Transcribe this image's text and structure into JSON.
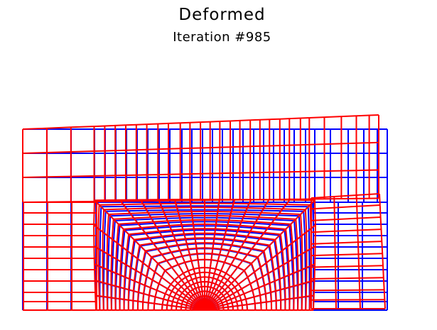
{
  "figure": {
    "title": "Deformed",
    "subtitle": "Iteration #985",
    "colors": {
      "undeformed_mesh": "#0000ff",
      "deformed_mesh": "#ff0000",
      "background": "#ffffff"
    }
  }
}
